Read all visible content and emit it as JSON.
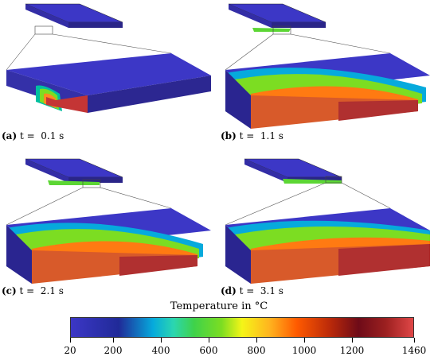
{
  "panels": [
    {
      "label": "(a)",
      "text": " t =  0.1 s"
    },
    {
      "label": "(b)",
      "text": " t =  1.1 s"
    },
    {
      "label": "(c)",
      "text": " t =  2.1 s"
    },
    {
      "label": "(d)",
      "text": " t =  3.1 s"
    }
  ],
  "colorbar": {
    "title": "Temperature in °C",
    "ticks": [
      "20",
      "200",
      "400",
      "600",
      "800",
      "1000",
      "1200",
      "1460"
    ],
    "colors": {
      "cold": "#3c37c6",
      "hot": "#e04747"
    }
  }
}
